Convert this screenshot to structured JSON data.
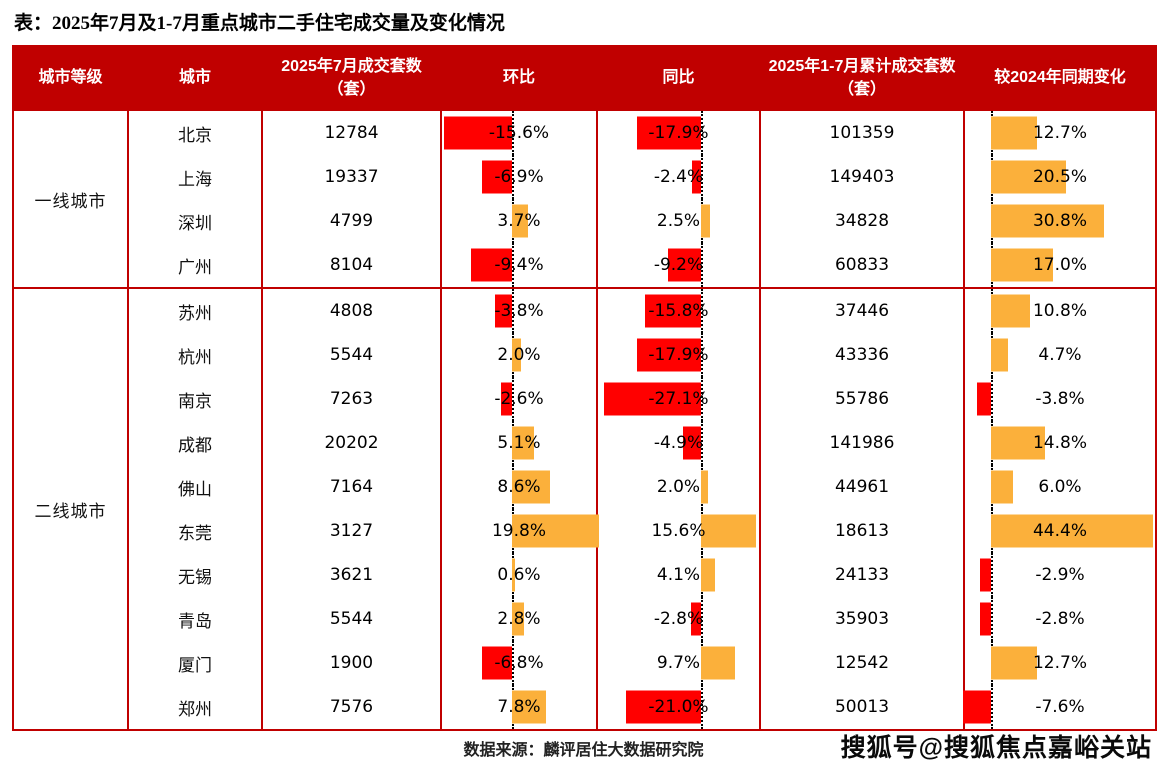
{
  "title": "表：2025年7月及1-7月重点城市二手住宅成交量及变化情况",
  "columns": [
    "城市等级",
    "城市",
    "2025年7月成交套数（套）",
    "环比",
    "同比",
    "2025年1-7月累计成交套数（套）",
    "较2024年同期变化"
  ],
  "colors": {
    "header_bg": "#C00000",
    "table_border": "#C00000",
    "negative_bar": "#FF0000",
    "positive_bar": "#FBB03B",
    "zero_axis": "#000000"
  },
  "groups": [
    {
      "tier": "一线城市",
      "rows": [
        {
          "city": "北京",
          "july_units": "12784",
          "mom": -15.6,
          "mom_label": "-15.6%",
          "yoy": -17.9,
          "yoy_label": "-17.9%",
          "cum_units": "101359",
          "vs2024": 12.7,
          "vs2024_label": "12.7%"
        },
        {
          "city": "上海",
          "july_units": "19337",
          "mom": -6.9,
          "mom_label": "-6.9%",
          "yoy": -2.4,
          "yoy_label": "-2.4%",
          "cum_units": "149403",
          "vs2024": 20.5,
          "vs2024_label": "20.5%"
        },
        {
          "city": "深圳",
          "july_units": "4799",
          "mom": 3.7,
          "mom_label": "3.7%",
          "yoy": 2.5,
          "yoy_label": "2.5%",
          "cum_units": "34828",
          "vs2024": 30.8,
          "vs2024_label": "30.8%"
        },
        {
          "city": "广州",
          "july_units": "8104",
          "mom": -9.4,
          "mom_label": "-9.4%",
          "yoy": -9.2,
          "yoy_label": "-9.2%",
          "cum_units": "60833",
          "vs2024": 17.0,
          "vs2024_label": "17.0%"
        }
      ]
    },
    {
      "tier": "二线城市",
      "rows": [
        {
          "city": "苏州",
          "july_units": "4808",
          "mom": -3.8,
          "mom_label": "-3.8%",
          "yoy": -15.8,
          "yoy_label": "-15.8%",
          "cum_units": "37446",
          "vs2024": 10.8,
          "vs2024_label": "10.8%"
        },
        {
          "city": "杭州",
          "july_units": "5544",
          "mom": 2.0,
          "mom_label": "2.0%",
          "yoy": -17.9,
          "yoy_label": "-17.9%",
          "cum_units": "43336",
          "vs2024": 4.7,
          "vs2024_label": "4.7%"
        },
        {
          "city": "南京",
          "july_units": "7263",
          "mom": -2.6,
          "mom_label": "-2.6%",
          "yoy": -27.1,
          "yoy_label": "-27.1%",
          "cum_units": "55786",
          "vs2024": -3.8,
          "vs2024_label": "-3.8%"
        },
        {
          "city": "成都",
          "july_units": "20202",
          "mom": 5.1,
          "mom_label": "5.1%",
          "yoy": -4.9,
          "yoy_label": "-4.9%",
          "cum_units": "141986",
          "vs2024": 14.8,
          "vs2024_label": "14.8%"
        },
        {
          "city": "佛山",
          "july_units": "7164",
          "mom": 8.6,
          "mom_label": "8.6%",
          "yoy": 2.0,
          "yoy_label": "2.0%",
          "cum_units": "44961",
          "vs2024": 6.0,
          "vs2024_label": "6.0%"
        },
        {
          "city": "东莞",
          "july_units": "3127",
          "mom": 19.8,
          "mom_label": "19.8%",
          "yoy": 15.6,
          "yoy_label": "15.6%",
          "cum_units": "18613",
          "vs2024": 44.4,
          "vs2024_label": "44.4%"
        },
        {
          "city": "无锡",
          "july_units": "3621",
          "mom": 0.6,
          "mom_label": "0.6%",
          "yoy": 4.1,
          "yoy_label": "4.1%",
          "cum_units": "24133",
          "vs2024": -2.9,
          "vs2024_label": "-2.9%"
        },
        {
          "city": "青岛",
          "july_units": "5544",
          "mom": 2.8,
          "mom_label": "2.8%",
          "yoy": -2.8,
          "yoy_label": "-2.8%",
          "cum_units": "35903",
          "vs2024": -2.8,
          "vs2024_label": "-2.8%"
        },
        {
          "city": "厦门",
          "july_units": "1900",
          "mom": -6.8,
          "mom_label": "-6.8%",
          "yoy": 9.7,
          "yoy_label": "9.7%",
          "cum_units": "12542",
          "vs2024": 12.7,
          "vs2024_label": "12.7%"
        },
        {
          "city": "郑州",
          "july_units": "7576",
          "mom": 7.8,
          "mom_label": "7.8%",
          "yoy": -21.0,
          "yoy_label": "-21.0%",
          "cum_units": "50013",
          "vs2024": -7.6,
          "vs2024_label": "-7.6%"
        }
      ]
    }
  ],
  "footer": {
    "source": "数据来源：麟评居住大数据研究院",
    "watermark": "搜狐号@搜狐焦点嘉峪关站"
  },
  "chart_data": {
    "type": "table",
    "title": "2025年7月及1-7月重点城市二手住宅成交量及变化情况",
    "columns": [
      "城市等级",
      "城市",
      "2025年7月成交套数（套）",
      "环比",
      "同比",
      "2025年1-7月累计成交套数（套）",
      "较2024年同期变化"
    ],
    "categories": [
      "北京",
      "上海",
      "深圳",
      "广州",
      "苏州",
      "杭州",
      "南京",
      "成都",
      "佛山",
      "东莞",
      "无锡",
      "青岛",
      "厦门",
      "郑州"
    ],
    "tiers": [
      "一线城市",
      "一线城市",
      "一线城市",
      "一线城市",
      "二线城市",
      "二线城市",
      "二线城市",
      "二线城市",
      "二线城市",
      "二线城市",
      "二线城市",
      "二线城市",
      "二线城市",
      "二线城市"
    ],
    "series": [
      {
        "name": "2025年7月成交套数（套）",
        "values": [
          12784,
          19337,
          4799,
          8104,
          4808,
          5544,
          7263,
          20202,
          7164,
          3127,
          3621,
          5544,
          1900,
          7576
        ]
      },
      {
        "name": "环比(%)",
        "values": [
          -15.6,
          -6.9,
          3.7,
          -9.4,
          -3.8,
          2.0,
          -2.6,
          5.1,
          8.6,
          19.8,
          0.6,
          2.8,
          -6.8,
          7.8
        ]
      },
      {
        "name": "同比(%)",
        "values": [
          -17.9,
          -2.4,
          2.5,
          -9.2,
          -15.8,
          -17.9,
          -27.1,
          -4.9,
          2.0,
          15.6,
          4.1,
          -2.8,
          9.7,
          -21.0
        ]
      },
      {
        "name": "2025年1-7月累计成交套数（套）",
        "values": [
          101359,
          149403,
          34828,
          60833,
          37446,
          43336,
          55786,
          141986,
          44961,
          18613,
          24133,
          35903,
          12542,
          50013
        ]
      },
      {
        "name": "较2024年同期变化(%)",
        "values": [
          12.7,
          20.5,
          30.8,
          17.0,
          10.8,
          4.7,
          -3.8,
          14.8,
          6.0,
          44.4,
          -2.9,
          -2.8,
          12.7,
          -7.6
        ]
      }
    ],
    "bar_style": {
      "positive_color": "#FBB03B",
      "negative_color": "#FF0000",
      "zero_axis": "dotted-black"
    },
    "legend": "none",
    "grid": "off"
  }
}
